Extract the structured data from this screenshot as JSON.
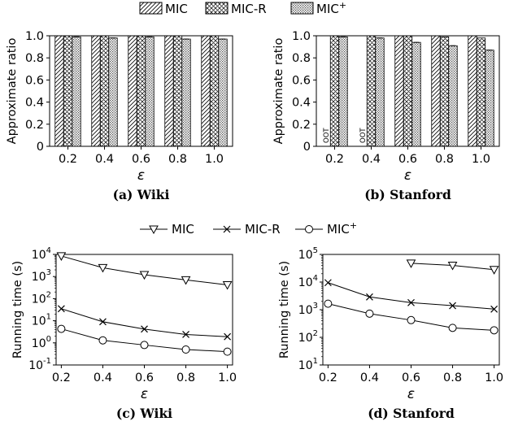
{
  "bar_legend": {
    "items": [
      {
        "label": "MIC",
        "pattern": "diag"
      },
      {
        "label": "MIC-R",
        "pattern": "cross"
      },
      {
        "label": "MIC",
        "sup": "+",
        "pattern": "dots"
      }
    ]
  },
  "line_legend": {
    "items": [
      {
        "label": "MIC",
        "marker": "triangle-down"
      },
      {
        "label": "MIC-R",
        "marker": "x"
      },
      {
        "label": "MIC",
        "sup": "+",
        "marker": "circle"
      }
    ]
  },
  "chart_data": [
    {
      "type": "bar",
      "caption": "(a) Wiki",
      "xlabel": "ε",
      "ylabel": "Approximate ratio",
      "categories": [
        "0.2",
        "0.4",
        "0.6",
        "0.8",
        "1.0"
      ],
      "ylim": [
        0,
        1.0
      ],
      "yticks": [
        "0",
        "0.2",
        "0.4",
        "0.6",
        "0.8",
        "1.0"
      ],
      "series": [
        {
          "name": "MIC",
          "values": [
            1.0,
            1.0,
            1.0,
            1.0,
            1.0
          ]
        },
        {
          "name": "MIC-R",
          "values": [
            1.0,
            1.0,
            1.0,
            1.0,
            1.0
          ]
        },
        {
          "name": "MIC+",
          "values": [
            0.99,
            0.98,
            0.99,
            0.97,
            0.97
          ]
        }
      ]
    },
    {
      "type": "bar",
      "caption": "(b) Stanford",
      "xlabel": "ε",
      "ylabel": "Approximate ratio",
      "categories": [
        "0.2",
        "0.4",
        "0.6",
        "0.8",
        "1.0"
      ],
      "ylim": [
        0,
        1.0
      ],
      "yticks": [
        "0",
        "0.2",
        "0.4",
        "0.6",
        "0.8",
        "1.0"
      ],
      "annotations": [
        {
          "text": "OOT",
          "category": "0.2",
          "series": "MIC"
        },
        {
          "text": "OOT",
          "category": "0.4",
          "series": "MIC"
        }
      ],
      "series": [
        {
          "name": "MIC",
          "values": [
            null,
            null,
            1.0,
            1.0,
            1.0
          ]
        },
        {
          "name": "MIC-R",
          "values": [
            1.0,
            1.0,
            1.0,
            0.99,
            0.98
          ]
        },
        {
          "name": "MIC+",
          "values": [
            0.99,
            0.98,
            0.94,
            0.91,
            0.87
          ]
        }
      ]
    },
    {
      "type": "line",
      "caption": "(c) Wiki",
      "xlabel": "ε",
      "ylabel": "Running time (s)",
      "x": [
        0.2,
        0.4,
        0.6,
        0.8,
        1.0
      ],
      "xticks": [
        "0.2",
        "0.4",
        "0.6",
        "0.8",
        "1.0"
      ],
      "yscale": "log",
      "ylim_exp": [
        -1,
        4
      ],
      "series": [
        {
          "name": "MIC",
          "values": [
            8500,
            2500,
            1200,
            700,
            420
          ]
        },
        {
          "name": "MIC-R",
          "values": [
            35,
            9,
            4.2,
            2.4,
            1.9
          ]
        },
        {
          "name": "MIC+",
          "values": [
            4.3,
            1.3,
            0.8,
            0.5,
            0.4
          ]
        }
      ]
    },
    {
      "type": "line",
      "caption": "(d) Stanford",
      "xlabel": "ε",
      "ylabel": "Running time (s)",
      "x": [
        0.2,
        0.4,
        0.6,
        0.8,
        1.0
      ],
      "xticks": [
        "0.2",
        "0.4",
        "0.6",
        "0.8",
        "1.0"
      ],
      "yscale": "log",
      "ylim_exp": [
        1,
        5
      ],
      "series": [
        {
          "name": "MIC",
          "values": [
            null,
            null,
            48000,
            40000,
            28000
          ]
        },
        {
          "name": "MIC-R",
          "values": [
            9500,
            2900,
            1800,
            1400,
            1050
          ]
        },
        {
          "name": "MIC+",
          "values": [
            1650,
            720,
            420,
            220,
            180
          ]
        }
      ]
    }
  ]
}
